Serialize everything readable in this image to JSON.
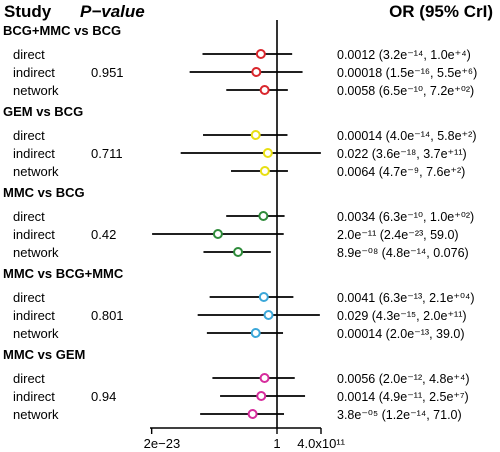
{
  "chart_data": {
    "type": "forest",
    "header": {
      "study": "Study",
      "pvalue": "P−value",
      "or": "OR (95% CrI)"
    },
    "x_scale": "log",
    "xlim": [
      1e-23,
      400000000000.0
    ],
    "ref_value": 1,
    "x_ticks": [
      {
        "value": 2e-23,
        "label": "2e−23"
      },
      {
        "value": 1,
        "label": "1"
      },
      {
        "value": 400000000000.0,
        "label": "4.0x10¹¹"
      }
    ],
    "groups": [
      {
        "name": "BCG+MMC vs BCG",
        "color": "#d9262c",
        "pvalue": "0.951",
        "rows": [
          {
            "label": "direct",
            "or": 0.0012,
            "lo": 3.2e-14,
            "hi": 10000.0,
            "text": "0.0012 (3.2e⁻¹⁴, 1.0e⁺⁴)"
          },
          {
            "label": "indirect",
            "or": 0.00018,
            "lo": 1.5e-16,
            "hi": 5500000.0,
            "text": "0.00018 (1.5e⁻¹⁶, 5.5e⁺⁶)"
          },
          {
            "label": "network",
            "or": 0.0058,
            "lo": 6.5e-10,
            "hi": 720.0,
            "text": "0.0058 (6.5e⁻¹⁰, 7.2e⁺⁰²)"
          }
        ]
      },
      {
        "name": "GEM vs BCG",
        "color": "#e8df12",
        "pvalue": "0.711",
        "rows": [
          {
            "label": "direct",
            "or": 0.00014,
            "lo": 4e-14,
            "hi": 580.0,
            "text": "0.00014 (4.0e⁻¹⁴, 5.8e⁺²)"
          },
          {
            "label": "indirect",
            "or": 0.022,
            "lo": 3.6e-18,
            "hi": 370000000000.0,
            "text": "0.022 (3.6e⁻¹⁸, 3.7e⁺¹¹)"
          },
          {
            "label": "network",
            "or": 0.0064,
            "lo": 4.7e-09,
            "hi": 760.0,
            "text": "0.0064 (4.7e⁻⁹, 7.6e⁺²)"
          }
        ]
      },
      {
        "name": "MMC vs BCG",
        "color": "#2e8b3a",
        "pvalue": "0.42",
        "rows": [
          {
            "label": "direct",
            "or": 0.0034,
            "lo": 6.3e-10,
            "hi": 100.0,
            "text": "0.0034 (6.3e⁻¹⁰, 1.0e⁺⁰²)"
          },
          {
            "label": "indirect",
            "or": 2e-11,
            "lo": 2.4e-23,
            "hi": 59.0,
            "text": "2.0e⁻¹¹ (2.4e⁻²³, 59.0)"
          },
          {
            "label": "network",
            "or": 8.9e-08,
            "lo": 4.8e-14,
            "hi": 0.076,
            "text": "8.9e⁻⁰⁸ (4.8e⁻¹⁴, 0.076)"
          }
        ]
      },
      {
        "name": "MMC vs BCG+MMC",
        "color": "#3ba7d9",
        "pvalue": "0.801",
        "rows": [
          {
            "label": "direct",
            "or": 0.0041,
            "lo": 6.3e-13,
            "hi": 21000.0,
            "text": "0.0041 (6.3e⁻¹³, 2.1e⁺⁰⁴)"
          },
          {
            "label": "indirect",
            "or": 0.029,
            "lo": 4.3e-15,
            "hi": 200000000000.0,
            "text": "0.029 (4.3e⁻¹⁵, 2.0e⁺¹¹)"
          },
          {
            "label": "network",
            "or": 0.00014,
            "lo": 2e-13,
            "hi": 39.0,
            "text": "0.00014 (2.0e⁻¹³, 39.0)"
          }
        ]
      },
      {
        "name": "MMC vs GEM",
        "color": "#d62b9c",
        "pvalue": "0.94",
        "rows": [
          {
            "label": "direct",
            "or": 0.0056,
            "lo": 2e-12,
            "hi": 48000.0,
            "text": "0.0056 (2.0e⁻¹², 4.8e⁺⁴)"
          },
          {
            "label": "indirect",
            "or": 0.0014,
            "lo": 4.9e-11,
            "hi": 25000000.0,
            "text": "0.0014 (4.9e⁻¹¹, 2.5e⁺⁷)"
          },
          {
            "label": "network",
            "or": 3.8e-05,
            "lo": 1.2e-14,
            "hi": 71.0,
            "text": "3.8e⁻⁰⁵ (1.2e⁻¹⁴, 71.0)"
          }
        ]
      }
    ]
  }
}
